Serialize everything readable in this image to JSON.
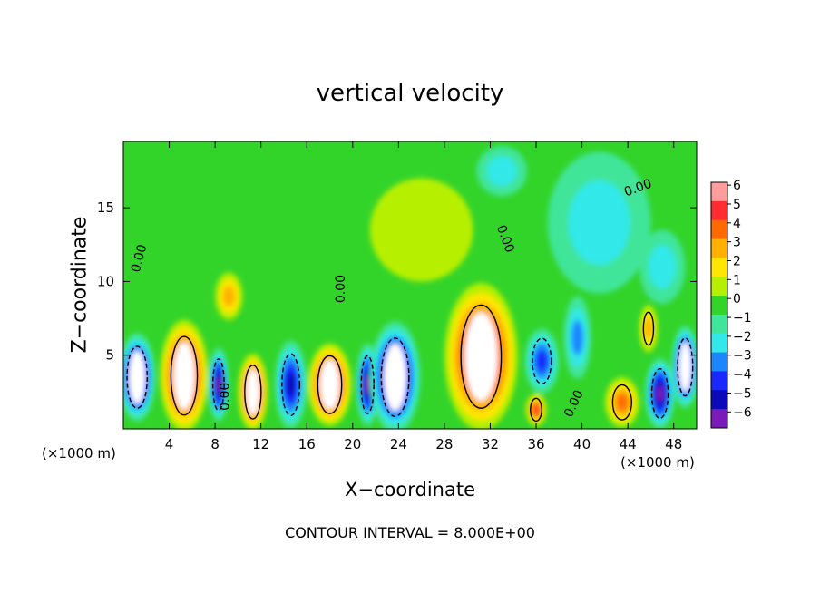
{
  "chart_data": {
    "type": "heatmap",
    "title": "vertical velocity",
    "xlabel": "X−coordinate",
    "ylabel": "Z−coordinate",
    "x_unit_note": "(×1000 m)",
    "footnote": "CONTOUR INTERVAL = 8.000E+00",
    "xlim": [
      0,
      50
    ],
    "ylim": [
      0,
      19.5
    ],
    "x_ticks": [
      4,
      8,
      12,
      16,
      20,
      24,
      28,
      32,
      36,
      40,
      44,
      48
    ],
    "y_ticks": [
      5,
      10,
      15
    ],
    "colorbar": {
      "ticks": [
        6,
        5,
        4,
        3,
        2,
        1,
        0,
        -1,
        -2,
        -3,
        -4,
        -5,
        -6
      ],
      "labels": [
        "6",
        "5",
        "4",
        "3",
        "2",
        "1",
        "0",
        "−1",
        "−2",
        "−3",
        "−4",
        "−5",
        "−6"
      ],
      "colors": [
        "#ff9c9c",
        "#ff2d2d",
        "#ff6a00",
        "#ffb000",
        "#ffe600",
        "#b7ef00",
        "#33d42a",
        "#3fe59a",
        "#33e8e8",
        "#1c86ff",
        "#1828ff",
        "#0a0ab8",
        "#7a1ab8"
      ]
    },
    "contour_labels": [
      "0.00",
      "0.00",
      "0.00",
      "0.00",
      "0.00",
      "0.00"
    ],
    "cells": [
      {
        "x": 1.2,
        "z": 3.5,
        "rx": 1.6,
        "rz": 3.0,
        "v": -6.5
      },
      {
        "x": 5.3,
        "z": 3.6,
        "rx": 2.1,
        "rz": 3.8,
        "v": 6.5
      },
      {
        "x": 8.3,
        "z": 3.0,
        "rx": 0.9,
        "rz": 2.5,
        "v": -5.5
      },
      {
        "x": 11.3,
        "z": 2.5,
        "rx": 1.3,
        "rz": 2.6,
        "v": 6.2
      },
      {
        "x": 14.6,
        "z": 3.0,
        "rx": 1.4,
        "rz": 3.0,
        "v": -4.6
      },
      {
        "x": 18.0,
        "z": 3.0,
        "rx": 1.9,
        "rz": 2.8,
        "v": 6.4
      },
      {
        "x": 21.3,
        "z": 3.0,
        "rx": 1.0,
        "rz": 2.8,
        "v": -5.6
      },
      {
        "x": 23.7,
        "z": 3.5,
        "rx": 2.2,
        "rz": 3.8,
        "v": -6.5
      },
      {
        "x": 31.2,
        "z": 4.9,
        "rx": 3.2,
        "rz": 5.0,
        "v": 6.5
      },
      {
        "x": 36.5,
        "z": 4.6,
        "rx": 1.5,
        "rz": 2.2,
        "v": -3.2
      },
      {
        "x": 36.0,
        "z": 1.3,
        "rx": 0.9,
        "rz": 1.1,
        "v": 4.4
      },
      {
        "x": 39.6,
        "z": 6.2,
        "rx": 1.2,
        "rz": 2.8,
        "v": -2.6
      },
      {
        "x": 43.5,
        "z": 1.8,
        "rx": 1.5,
        "rz": 1.7,
        "v": 3.8
      },
      {
        "x": 46.8,
        "z": 2.4,
        "rx": 1.3,
        "rz": 2.4,
        "v": -5.2
      },
      {
        "x": 49.0,
        "z": 4.2,
        "rx": 1.2,
        "rz": 2.8,
        "v": -6.5
      },
      {
        "x": 45.8,
        "z": 6.8,
        "rx": 0.8,
        "rz": 1.6,
        "v": 3.0
      },
      {
        "x": 9.2,
        "z": 9.0,
        "rx": 1.2,
        "rz": 1.6,
        "v": 2.8
      },
      {
        "x": 26.0,
        "z": 13.5,
        "rx": 4.5,
        "rz": 3.5,
        "v": 0.6
      },
      {
        "x": 33.0,
        "z": 17.5,
        "rx": 2.2,
        "rz": 1.7,
        "v": -1.4
      },
      {
        "x": 41.5,
        "z": 14.0,
        "rx": 4.5,
        "rz": 4.8,
        "v": -1.3
      },
      {
        "x": 47.0,
        "z": 11.0,
        "rx": 2.0,
        "rz": 2.5,
        "v": -1.2
      }
    ]
  }
}
